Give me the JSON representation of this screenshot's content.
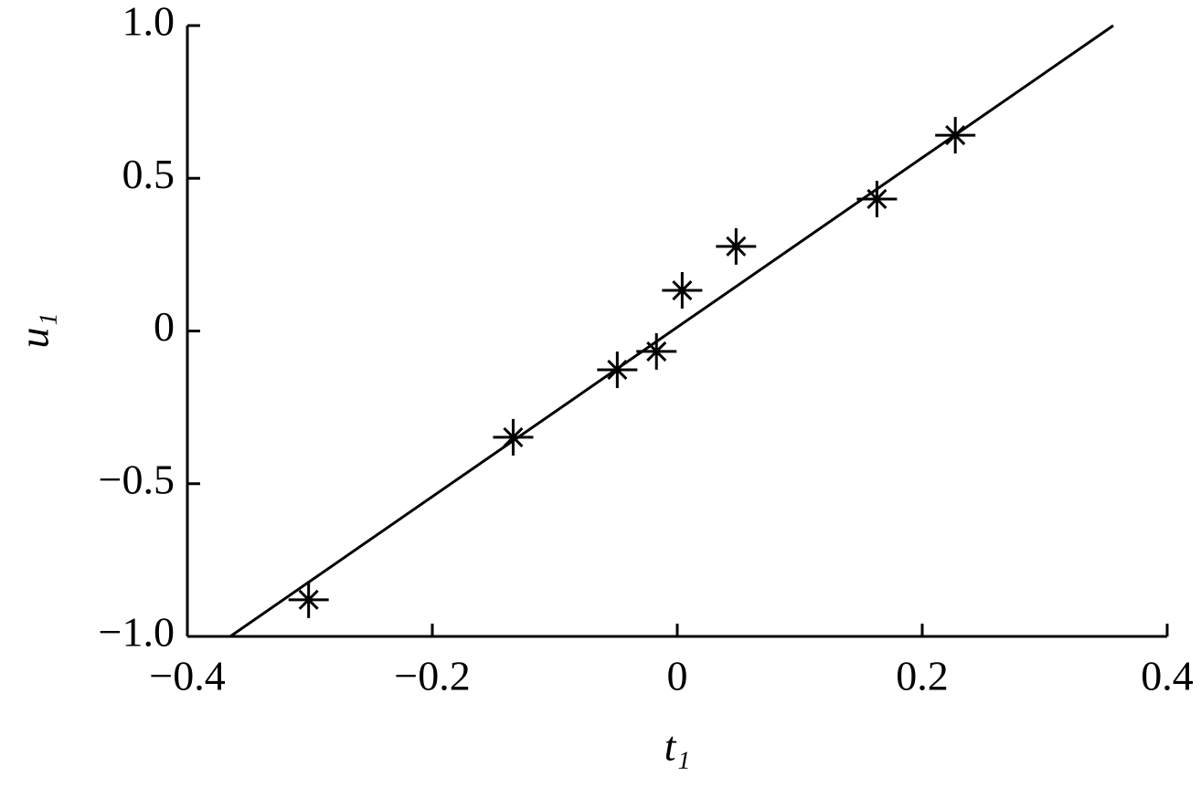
{
  "chart_data": {
    "type": "scatter",
    "xlabel": "t₁",
    "ylabel": "u₁",
    "x": [
      -0.301,
      -0.134,
      -0.049,
      -0.017,
      0.004,
      0.048,
      0.163,
      0.227
    ],
    "values": [
      -0.88,
      -0.348,
      -0.127,
      -0.067,
      0.133,
      0.277,
      0.432,
      0.641
    ],
    "color": "#000000",
    "fit": {
      "x": [
        -0.365,
        0.356
      ],
      "values": [
        -1.0,
        1.0
      ]
    },
    "xlim": [
      -0.4,
      0.4
    ],
    "ylim": [
      -1.0,
      1.0
    ],
    "xticks": [
      {
        "value": -0.4,
        "label": "−0.4"
      },
      {
        "value": -0.2,
        "label": "−0.2"
      },
      0,
      0.2,
      0.4
    ],
    "yticks": [
      {
        "value": -1.0,
        "label": "−1.0"
      },
      {
        "value": -0.5,
        "label": "−0.5"
      },
      0,
      0.5,
      {
        "value": 1.0,
        "label": "1.0"
      }
    ]
  }
}
